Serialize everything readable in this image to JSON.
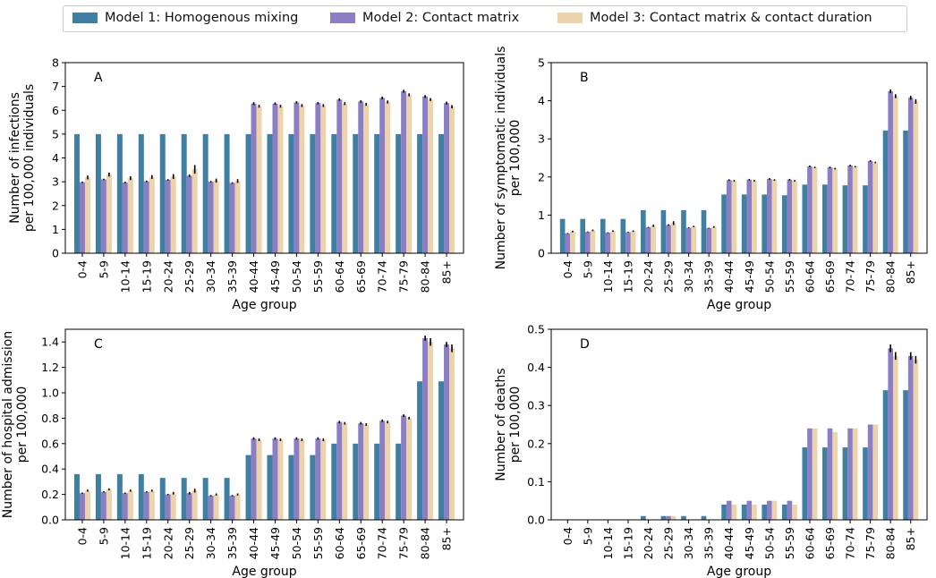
{
  "colors": {
    "model1": "#3f7fa2",
    "model2": "#8b7ec4",
    "model3": "#ecd3ab"
  },
  "legend": {
    "items": [
      {
        "label": "Model 1: Homogenous mixing",
        "color_key": "model1"
      },
      {
        "label": "Model 2: Contact matrix",
        "color_key": "model2"
      },
      {
        "label": "Model 3: Contact matrix & contact duration",
        "color_key": "model3"
      }
    ]
  },
  "chart_data": [
    {
      "type": "bar",
      "panel_label": "A",
      "xlabel": "Age group",
      "ylabel": [
        "Number of infections",
        "per 100,000 individuals"
      ],
      "ylim": [
        0,
        8
      ],
      "yticks": [
        "0",
        "1",
        "2",
        "3",
        "4",
        "5",
        "6",
        "7",
        "8"
      ],
      "categories": [
        "0-4",
        "5-9",
        "10-14",
        "15-19",
        "20-24",
        "25-29",
        "30-34",
        "35-39",
        "40-44",
        "45-49",
        "50-54",
        "55-59",
        "60-64",
        "65-69",
        "70-74",
        "75-79",
        "80-84",
        "85+"
      ],
      "series": [
        {
          "name": "Model 1: Homogenous mixing",
          "values": [
            5,
            5,
            5,
            5,
            5,
            5,
            5,
            5,
            5,
            5,
            5,
            5,
            5,
            5,
            5,
            5,
            5,
            5
          ]
        },
        {
          "name": "Model 2: Contact matrix",
          "values": [
            2.98,
            3.1,
            2.97,
            3.02,
            3.08,
            3.25,
            3.0,
            2.95,
            6.28,
            6.28,
            6.33,
            6.3,
            6.45,
            6.37,
            6.52,
            6.8,
            6.58,
            6.3
          ]
        },
        {
          "name": "Model 3: Contact matrix & contact duration",
          "values": [
            3.18,
            3.3,
            3.15,
            3.2,
            3.22,
            3.52,
            3.05,
            3.03,
            6.17,
            6.17,
            6.2,
            6.2,
            6.28,
            6.25,
            6.35,
            6.65,
            6.45,
            6.15
          ]
        }
      ],
      "errors": [
        [
          0,
          0,
          0,
          0,
          0,
          0,
          0,
          0,
          0,
          0,
          0,
          0,
          0,
          0,
          0,
          0,
          0,
          0
        ],
        [
          0.03,
          0.03,
          0.03,
          0.03,
          0.03,
          0.05,
          0.03,
          0.03,
          0.06,
          0.05,
          0.05,
          0.05,
          0.05,
          0.05,
          0.06,
          0.06,
          0.06,
          0.06
        ],
        [
          0.08,
          0.08,
          0.08,
          0.08,
          0.1,
          0.18,
          0.08,
          0.08,
          0.06,
          0.06,
          0.06,
          0.06,
          0.06,
          0.06,
          0.06,
          0.06,
          0.06,
          0.07
        ]
      ]
    },
    {
      "type": "bar",
      "panel_label": "B",
      "xlabel": "Age group",
      "ylabel": [
        "Number of symptomatic individuals",
        "per 100,000"
      ],
      "ylim": [
        0,
        5
      ],
      "yticks": [
        "0",
        "1",
        "2",
        "3",
        "4",
        "5"
      ],
      "categories": [
        "0-4",
        "5-9",
        "10-14",
        "15-19",
        "20-24",
        "25-29",
        "30-34",
        "35-39",
        "40-44",
        "45-49",
        "50-54",
        "55-59",
        "60-64",
        "65-69",
        "70-74",
        "75-79",
        "80-84",
        "85+"
      ],
      "series": [
        {
          "name": "Model 1: Homogenous mixing",
          "values": [
            0.9,
            0.9,
            0.9,
            0.9,
            1.13,
            1.13,
            1.13,
            1.13,
            1.54,
            1.54,
            1.54,
            1.52,
            1.8,
            1.8,
            1.78,
            1.78,
            3.22,
            3.22
          ]
        },
        {
          "name": "Model 2: Contact matrix",
          "values": [
            0.52,
            0.56,
            0.54,
            0.55,
            0.68,
            0.74,
            0.67,
            0.66,
            1.92,
            1.93,
            1.95,
            1.93,
            2.28,
            2.25,
            2.3,
            2.42,
            4.25,
            4.08
          ]
        },
        {
          "name": "Model 3: Contact matrix & contact duration",
          "values": [
            0.57,
            0.6,
            0.58,
            0.58,
            0.72,
            0.79,
            0.7,
            0.69,
            1.9,
            1.9,
            1.92,
            1.9,
            2.25,
            2.22,
            2.27,
            2.38,
            4.12,
            3.98
          ]
        }
      ],
      "errors": [
        [
          0,
          0,
          0,
          0,
          0,
          0,
          0,
          0,
          0,
          0,
          0,
          0,
          0,
          0,
          0,
          0,
          0,
          0
        ],
        [
          0.01,
          0.01,
          0.01,
          0.01,
          0.01,
          0.02,
          0.01,
          0.01,
          0.02,
          0.02,
          0.02,
          0.02,
          0.02,
          0.02,
          0.02,
          0.02,
          0.05,
          0.05
        ],
        [
          0.02,
          0.02,
          0.02,
          0.02,
          0.03,
          0.05,
          0.02,
          0.02,
          0.02,
          0.02,
          0.02,
          0.02,
          0.02,
          0.02,
          0.02,
          0.02,
          0.05,
          0.06
        ]
      ]
    },
    {
      "type": "bar",
      "panel_label": "C",
      "xlabel": "Age group",
      "ylabel": [
        "Number of hospital admission",
        "per 100,000"
      ],
      "ylim": [
        0,
        1.5
      ],
      "yticks": [
        "0.0",
        "0.2",
        "0.4",
        "0.6",
        "0.8",
        "1.0",
        "1.2",
        "1.4"
      ],
      "categories": [
        "0-4",
        "5-9",
        "10-14",
        "15-19",
        "20-24",
        "25-29",
        "30-34",
        "35-39",
        "40-44",
        "45-49",
        "50-54",
        "55-59",
        "60-64",
        "65-69",
        "70-74",
        "75-79",
        "80-84",
        "85+"
      ],
      "series": [
        {
          "name": "Model 1: Homogenous mixing",
          "values": [
            0.36,
            0.36,
            0.36,
            0.36,
            0.33,
            0.33,
            0.33,
            0.33,
            0.51,
            0.51,
            0.51,
            0.51,
            0.6,
            0.6,
            0.6,
            0.6,
            1.09,
            1.09
          ]
        },
        {
          "name": "Model 2: Contact matrix",
          "values": [
            0.21,
            0.22,
            0.21,
            0.22,
            0.2,
            0.21,
            0.19,
            0.19,
            0.64,
            0.64,
            0.64,
            0.64,
            0.77,
            0.76,
            0.78,
            0.82,
            1.43,
            1.38
          ]
        },
        {
          "name": "Model 3: Contact matrix & contact duration",
          "values": [
            0.23,
            0.24,
            0.23,
            0.23,
            0.21,
            0.23,
            0.2,
            0.2,
            0.63,
            0.63,
            0.63,
            0.63,
            0.76,
            0.75,
            0.77,
            0.8,
            1.4,
            1.35
          ]
        }
      ],
      "errors": [
        [
          0,
          0,
          0,
          0,
          0,
          0,
          0,
          0,
          0,
          0,
          0,
          0,
          0,
          0,
          0,
          0,
          0,
          0
        ],
        [
          0.005,
          0.005,
          0.005,
          0.005,
          0.005,
          0.01,
          0.005,
          0.005,
          0.01,
          0.01,
          0.01,
          0.01,
          0.01,
          0.01,
          0.01,
          0.01,
          0.02,
          0.02
        ],
        [
          0.008,
          0.008,
          0.008,
          0.008,
          0.01,
          0.015,
          0.008,
          0.008,
          0.01,
          0.01,
          0.01,
          0.01,
          0.01,
          0.01,
          0.01,
          0.01,
          0.03,
          0.03
        ]
      ]
    },
    {
      "type": "bar",
      "panel_label": "D",
      "xlabel": "Age group",
      "ylabel": [
        "Number of deaths",
        "per 100,000"
      ],
      "ylim": [
        0,
        0.5
      ],
      "yticks": [
        "0.0",
        "0.1",
        "0.2",
        "0.3",
        "0.4",
        "0.5"
      ],
      "categories": [
        "0-4",
        "5-9",
        "10-14",
        "15-19",
        "20-24",
        "25-29",
        "30-34",
        "35-39",
        "40-44",
        "45-49",
        "50-54",
        "55-59",
        "60-64",
        "65-69",
        "70-74",
        "75-79",
        "80-84",
        "85+"
      ],
      "series": [
        {
          "name": "Model 1: Homogenous mixing",
          "values": [
            0,
            0,
            0,
            0,
            0.01,
            0.01,
            0.01,
            0.01,
            0.04,
            0.04,
            0.04,
            0.04,
            0.19,
            0.19,
            0.19,
            0.19,
            0.34,
            0.34
          ]
        },
        {
          "name": "Model 2: Contact matrix",
          "values": [
            0,
            0,
            0,
            0,
            0,
            0.01,
            0,
            0,
            0.05,
            0.05,
            0.05,
            0.05,
            0.24,
            0.24,
            0.24,
            0.25,
            0.45,
            0.43
          ]
        },
        {
          "name": "Model 3: Contact matrix & contact duration",
          "values": [
            0,
            0,
            0,
            0,
            0,
            0.01,
            0,
            0,
            0.04,
            0.04,
            0.05,
            0.04,
            0.24,
            0.23,
            0.24,
            0.25,
            0.43,
            0.42
          ]
        }
      ],
      "errors": [
        [
          0,
          0,
          0,
          0,
          0,
          0,
          0,
          0,
          0,
          0,
          0,
          0,
          0,
          0,
          0,
          0,
          0,
          0
        ],
        [
          0,
          0,
          0,
          0,
          0,
          0,
          0,
          0,
          0,
          0,
          0,
          0,
          0,
          0,
          0,
          0,
          0.01,
          0.01
        ],
        [
          0,
          0,
          0,
          0,
          0,
          0,
          0,
          0,
          0,
          0,
          0,
          0,
          0,
          0,
          0,
          0,
          0.01,
          0.01
        ]
      ]
    }
  ]
}
